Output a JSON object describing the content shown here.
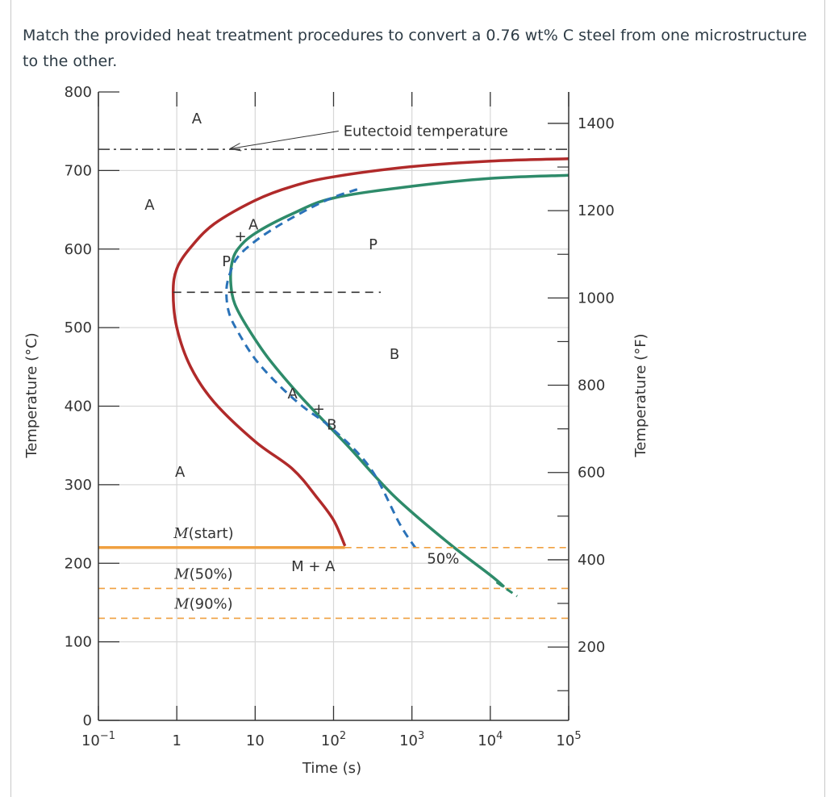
{
  "question": "Match the provided heat treatment procedures to convert a 0.76 wt% C steel from one microstructure to the other.",
  "chart_data": {
    "type": "line",
    "title": "",
    "xlabel": "Time (s)",
    "ylabel": "Temperature (°C)",
    "y2label": "Temperature (°F)",
    "xscale": "log",
    "xlim": [
      0.1,
      100000
    ],
    "ylim": [
      0,
      800
    ],
    "y2lim": [
      32,
      1472
    ],
    "x_ticks": [
      {
        "value": 0.1,
        "base": "10",
        "exp": "−1"
      },
      {
        "value": 1,
        "base": "1",
        "exp": ""
      },
      {
        "value": 10,
        "base": "10",
        "exp": ""
      },
      {
        "value": 100,
        "base": "10",
        "exp": "2"
      },
      {
        "value": 1000,
        "base": "10",
        "exp": "3"
      },
      {
        "value": 10000,
        "base": "10",
        "exp": "4"
      },
      {
        "value": 100000,
        "base": "10",
        "exp": "5"
      }
    ],
    "y_ticks": [
      0,
      100,
      200,
      300,
      400,
      500,
      600,
      700,
      800
    ],
    "y2_ticks": [
      200,
      400,
      600,
      800,
      1000,
      1200,
      1400
    ],
    "eutectoid_temperature": 727,
    "series": [
      {
        "name": "Transformation start curve",
        "color": "#b02a2a",
        "style": "solid",
        "points": [
          [
            100000,
            715
          ],
          [
            10000,
            712
          ],
          [
            1000,
            705
          ],
          [
            100,
            692
          ],
          [
            30,
            680
          ],
          [
            10,
            662
          ],
          [
            3,
            632
          ],
          [
            1.5,
            602
          ],
          [
            1,
            575
          ],
          [
            0.9,
            545
          ],
          [
            1.0,
            500
          ],
          [
            1.5,
            450
          ],
          [
            3,
            405
          ],
          [
            10,
            355
          ],
          [
            30,
            320
          ],
          [
            60,
            285
          ],
          [
            100,
            255
          ],
          [
            140,
            222
          ]
        ]
      },
      {
        "name": "Transformation finish curve",
        "color": "#2e8b6a",
        "style": "solid",
        "points": [
          [
            100000,
            694
          ],
          [
            10000,
            690
          ],
          [
            1000,
            680
          ],
          [
            100,
            665
          ],
          [
            30,
            645
          ],
          [
            10,
            620
          ],
          [
            6,
            600
          ],
          [
            5,
            580
          ],
          [
            4.9,
            555
          ],
          [
            5.5,
            530
          ],
          [
            8,
            500
          ],
          [
            15,
            460
          ],
          [
            40,
            410
          ],
          [
            150,
            350
          ],
          [
            600,
            285
          ],
          [
            3000,
            225
          ],
          [
            10000,
            185
          ],
          [
            15000,
            170
          ]
        ]
      },
      {
        "name": "50% transformation curve",
        "color": "#2a72b8",
        "style": "dashed",
        "points": [
          [
            200,
            676
          ],
          [
            100,
            666
          ],
          [
            50,
            652
          ],
          [
            20,
            630
          ],
          [
            10,
            610
          ],
          [
            6,
            590
          ],
          [
            4.8,
            570
          ],
          [
            4.3,
            548
          ],
          [
            4.6,
            520
          ],
          [
            6,
            495
          ],
          [
            10,
            460
          ],
          [
            20,
            427
          ],
          [
            40,
            400
          ],
          [
            100,
            370
          ],
          [
            300,
            320
          ],
          [
            700,
            250
          ],
          [
            1100,
            220
          ]
        ]
      },
      {
        "name": "Martensite start M(start)",
        "color": "#f0a040",
        "style": "solid",
        "temperature": 220,
        "points": [
          [
            0.1,
            220
          ],
          [
            140,
            220
          ]
        ]
      },
      {
        "name": "Martensite start extension",
        "color": "#f0a040",
        "style": "dashed",
        "points": [
          [
            140,
            220
          ],
          [
            100000,
            220
          ]
        ]
      },
      {
        "name": "M(50%)",
        "color": "#f0a040",
        "style": "dashed",
        "temperature": 168,
        "points": [
          [
            0.1,
            168
          ],
          [
            100000,
            168
          ]
        ]
      },
      {
        "name": "M(90%)",
        "color": "#f0a040",
        "style": "dashed",
        "temperature": 130,
        "points": [
          [
            0.1,
            130
          ],
          [
            100000,
            130
          ]
        ]
      },
      {
        "name": "Eutectoid temperature",
        "color": "#333333",
        "style": "dashdot",
        "temperature": 727,
        "points": [
          [
            0.1,
            727
          ],
          [
            100000,
            727
          ]
        ]
      },
      {
        "name": "Nose temperature reference",
        "color": "#333333",
        "style": "dashed",
        "temperature": 545,
        "points": [
          [
            0.9,
            545
          ],
          [
            400,
            545
          ]
        ]
      }
    ],
    "annotations": [
      {
        "text": "A",
        "x": 1.8,
        "y": 760
      },
      {
        "text": "A",
        "x": 0.45,
        "y": 650
      },
      {
        "text": "A",
        "x": 1.1,
        "y": 310
      },
      {
        "text": "P",
        "x": 320,
        "y": 600
      },
      {
        "text": "B",
        "x": 600,
        "y": 460
      },
      {
        "text": "+",
        "x": 6.5,
        "y": 610
      },
      {
        "text": "A",
        "x": 9.5,
        "y": 625
      },
      {
        "text": "P",
        "x": 4.3,
        "y": 578
      },
      {
        "text": "A",
        "x": 30,
        "y": 410
      },
      {
        "text": "+",
        "x": 65,
        "y": 390
      },
      {
        "text": "B",
        "x": 95,
        "y": 370
      },
      {
        "text": "M + A",
        "x": 55,
        "y": 190
      },
      {
        "text": "50%",
        "x": 2500,
        "y": 200
      },
      {
        "text": "Eutectoid temperature",
        "x": 1500,
        "y": 744
      }
    ],
    "martensite_labels": [
      {
        "prefix": "M",
        "suffix": "(start)",
        "x": 2.2,
        "y": 232
      },
      {
        "prefix": "M",
        "suffix": "(50%)",
        "x": 2.2,
        "y": 180
      },
      {
        "prefix": "M",
        "suffix": "(90%)",
        "x": 2.2,
        "y": 142
      }
    ],
    "grid": true
  }
}
